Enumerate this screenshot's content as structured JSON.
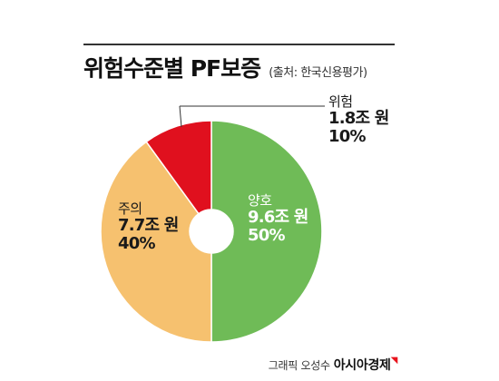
{
  "header": {
    "title": "위험수준별 PF보증",
    "subtitle": "(출처: 한국신용평가)"
  },
  "chart_data": {
    "type": "pie",
    "style": "donut",
    "categories": [
      "양호",
      "주의",
      "위험"
    ],
    "values": [
      9.6,
      7.7,
      1.8
    ],
    "percentages": [
      50,
      40,
      10
    ],
    "value_labels": [
      "9.6조 원",
      "7.7조 원",
      "1.8조 원"
    ],
    "percent_labels": [
      "50%",
      "40%",
      "10%"
    ],
    "colors": [
      "#6fbb57",
      "#f6c16f",
      "#e0101e"
    ]
  },
  "labels": [
    {
      "name": "양호",
      "value": "9.6조 원",
      "percent": "50%"
    },
    {
      "name": "주의",
      "value": "7.7조 원",
      "percent": "40%"
    },
    {
      "name": "위험",
      "value": "1.8조 원",
      "percent": "10%"
    }
  ],
  "credit": {
    "text": "그래픽 오성수",
    "brand": "아시아경제"
  }
}
